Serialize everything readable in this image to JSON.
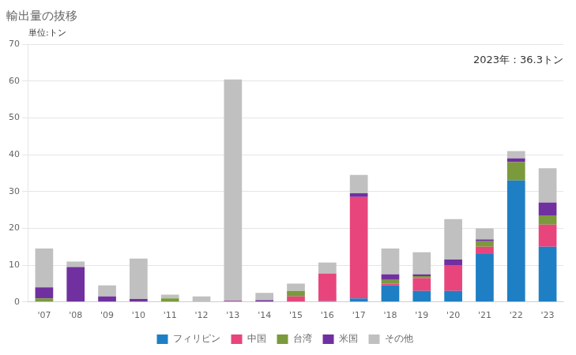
{
  "chart_data": {
    "type": "bar",
    "title": "輸出量の抜移",
    "categories": [
      "'07",
      "'08",
      "'09",
      "'10",
      "'11",
      "'12",
      "'13",
      "'14",
      "'15",
      "'16",
      "'17",
      "'18",
      "'19",
      "'20",
      "'21",
      "'22",
      "'23"
    ],
    "series": [
      {
        "name": "フィリピン",
        "color": "#1f7fc4",
        "values": [
          0.0,
          0.0,
          0.0,
          0.0,
          0.0,
          0.0,
          0.0,
          0.0,
          0.0,
          0.2,
          1.0,
          4.5,
          3.0,
          3.0,
          13.0,
          33.0,
          15.0
        ]
      },
      {
        "name": "中国",
        "color": "#e8457c",
        "values": [
          0.0,
          0.0,
          0.0,
          0.0,
          0.0,
          0.0,
          0.2,
          0.0,
          1.5,
          7.5,
          27.5,
          0.5,
          3.5,
          7.0,
          2.0,
          0.0,
          6.0
        ]
      },
      {
        "name": "台湾",
        "color": "#7a9a3c",
        "values": [
          1.0,
          0.0,
          0.0,
          0.0,
          1.0,
          0.0,
          0.0,
          0.0,
          1.5,
          0.0,
          0.0,
          1.0,
          0.5,
          0.0,
          1.5,
          5.0,
          2.5
        ]
      },
      {
        "name": "米国",
        "color": "#7030a0",
        "values": [
          3.0,
          9.5,
          1.5,
          0.8,
          0.0,
          0.0,
          0.2,
          0.5,
          0.0,
          0.0,
          1.0,
          1.5,
          0.5,
          1.5,
          0.5,
          1.0,
          3.5
        ]
      },
      {
        "name": "その他",
        "color": "#c0c0c0",
        "values": [
          10.5,
          1.5,
          3.0,
          11.0,
          1.0,
          1.5,
          60.0,
          2.0,
          2.0,
          3.0,
          5.0,
          7.0,
          6.0,
          11.0,
          3.0,
          2.0,
          9.3
        ]
      }
    ],
    "annotations": [
      "単位:トン",
      "2023年：36.3トン"
    ],
    "ylim": [
      0,
      70
    ],
    "yticks": [
      0,
      10,
      20,
      30,
      40,
      50,
      60,
      70
    ],
    "stacked": true,
    "grid": true,
    "legend": "bottom"
  }
}
